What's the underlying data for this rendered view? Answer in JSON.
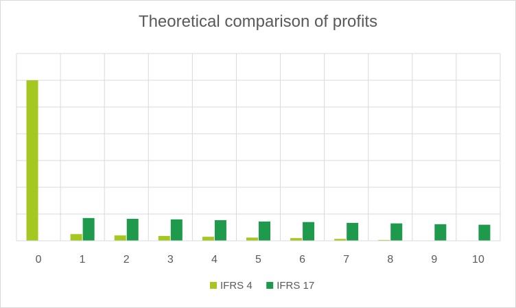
{
  "chart_data": {
    "type": "bar",
    "title": "Theoretical comparison of profits",
    "xlabel": "",
    "ylabel": "",
    "categories": [
      "0",
      "1",
      "2",
      "3",
      "4",
      "5",
      "6",
      "7",
      "8",
      "9",
      "10"
    ],
    "series": [
      {
        "name": "IFRS 4",
        "color": "#a5c820",
        "values": [
          6.0,
          0.25,
          0.2,
          0.18,
          0.15,
          0.12,
          0.1,
          0.07,
          0.03,
          0,
          0
        ]
      },
      {
        "name": "IFRS 17",
        "color": "#1f9a4c",
        "values": [
          0,
          0.85,
          0.82,
          0.8,
          0.77,
          0.72,
          0.7,
          0.67,
          0.65,
          0.62,
          0.6
        ]
      }
    ],
    "ylim": [
      0,
      6
    ],
    "y_tick_labels_shown": false,
    "grid": true,
    "legend_position": "bottom"
  }
}
